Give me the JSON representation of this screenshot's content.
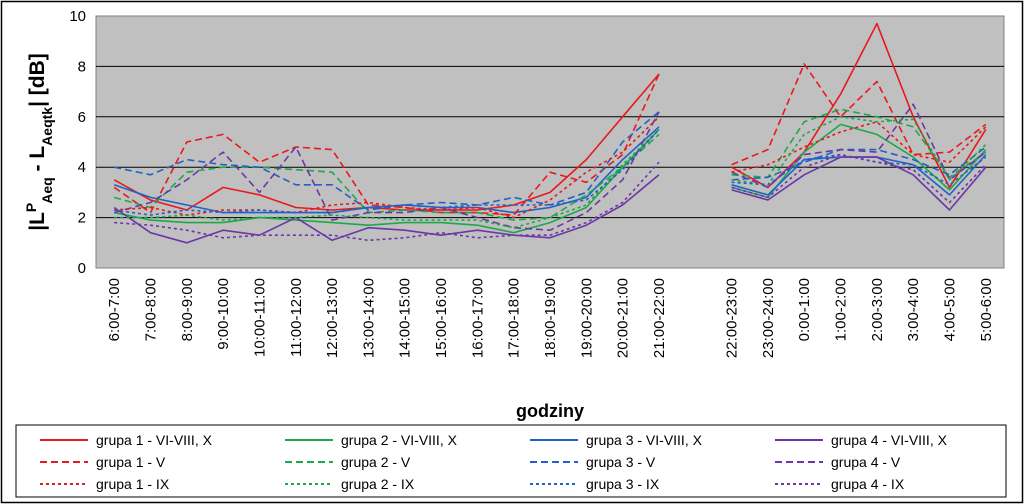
{
  "chart_data": {
    "type": "line",
    "title": "",
    "xlabel": "godziny",
    "ylabel": {
      "parts": [
        {
          "t": "|",
          "s": "n"
        },
        {
          "t": "L",
          "s": "n"
        },
        {
          "t": "P",
          "s": "sup"
        },
        {
          "t": "Aeq",
          "s": "sub"
        },
        {
          "t": " - L",
          "s": "n"
        },
        {
          "t": "Aeqtk",
          "s": "sub"
        },
        {
          "t": "|",
          "s": "n"
        },
        {
          "t": " [dB]",
          "s": "n"
        }
      ]
    },
    "ylim": [
      0,
      10
    ],
    "yticks": [
      "0",
      "2",
      "4",
      "6",
      "8",
      "10"
    ],
    "grid": "horizontal",
    "legend_position": "bottom",
    "categories": [
      "6:00-7:00",
      "7:00-8:00",
      "8:00-9:00",
      "9:00-10:00",
      "10:00-11:00",
      "11:00-12:00",
      "12:00-13:00",
      "13:00-14:00",
      "14:00-15:00",
      "15:00-16:00",
      "16:00-17:00",
      "17:00-18:00",
      "18:00-19:00",
      "19:00-20:00",
      "20:00-21:00",
      "21:00-22:00",
      "",
      "22:00-23:00",
      "23:00-24:00",
      "0:00-1:00",
      "1:00-2:00",
      "2:00-3:00",
      "3:00-4:00",
      "4:00-5:00",
      "5:00-6:00"
    ],
    "colors": {
      "red": "#e8191c",
      "green": "#1ea84a",
      "blue": "#1f63c6",
      "purple": "#6b37a8"
    },
    "series": [
      {
        "name": "grupa 1 - VI-VIII, X",
        "color": "#e8191c",
        "dash": "solid",
        "values": [
          3.5,
          2.7,
          2.3,
          3.2,
          2.9,
          2.4,
          2.3,
          2.4,
          2.3,
          2.3,
          2.3,
          2.5,
          3.0,
          4.3,
          6.0,
          7.7,
          null,
          4.0,
          3.2,
          4.6,
          6.9,
          9.7,
          6.0,
          3.2,
          5.5
        ]
      },
      {
        "name": "grupa 2 - VI-VIII, X",
        "color": "#1ea84a",
        "dash": "solid",
        "values": [
          2.2,
          1.9,
          1.8,
          1.8,
          2.0,
          1.9,
          1.8,
          1.7,
          1.8,
          1.8,
          1.7,
          1.4,
          1.8,
          2.4,
          4.0,
          5.5,
          null,
          3.2,
          2.8,
          4.6,
          5.7,
          5.3,
          4.4,
          3.1,
          4.7
        ]
      },
      {
        "name": "grupa 3 - VI-VIII, X",
        "color": "#1f63c6",
        "dash": "solid",
        "values": [
          3.3,
          2.8,
          2.5,
          2.2,
          2.2,
          2.2,
          2.2,
          2.4,
          2.5,
          2.4,
          2.4,
          2.2,
          2.4,
          2.8,
          4.3,
          5.6,
          null,
          3.3,
          2.9,
          4.3,
          4.4,
          4.4,
          4.1,
          2.9,
          4.5
        ]
      },
      {
        "name": "grupa 4 - VI-VIII, X",
        "color": "#6b37a8",
        "dash": "solid",
        "values": [
          2.4,
          1.4,
          1.0,
          1.5,
          1.3,
          2.0,
          1.1,
          1.6,
          1.5,
          1.3,
          1.5,
          1.3,
          1.2,
          1.7,
          2.5,
          3.7,
          null,
          3.1,
          2.7,
          3.7,
          4.4,
          4.4,
          3.7,
          2.3,
          4.0
        ]
      },
      {
        "name": "grupa 1 - V",
        "color": "#e8191c",
        "dash": "dash",
        "values": [
          3.2,
          2.2,
          5.0,
          5.3,
          4.2,
          4.8,
          4.7,
          2.5,
          2.4,
          2.2,
          2.2,
          2.1,
          3.8,
          3.4,
          4.5,
          7.7,
          null,
          4.1,
          4.7,
          8.1,
          6.0,
          7.4,
          4.5,
          4.6,
          5.7
        ]
      },
      {
        "name": "grupa 2 - V",
        "color": "#1ea84a",
        "dash": "dash",
        "values": [
          2.8,
          2.4,
          3.8,
          4.0,
          4.0,
          3.9,
          3.8,
          2.2,
          2.3,
          2.2,
          2.2,
          1.9,
          2.0,
          2.9,
          4.0,
          5.3,
          null,
          3.7,
          3.6,
          5.8,
          6.3,
          6.0,
          5.6,
          3.6,
          4.6
        ]
      },
      {
        "name": "grupa 3 - V",
        "color": "#1f63c6",
        "dash": "dash",
        "values": [
          4.0,
          3.7,
          4.3,
          4.1,
          4.0,
          3.3,
          3.3,
          2.3,
          2.5,
          2.6,
          2.5,
          2.8,
          2.5,
          3.0,
          5.0,
          6.2,
          null,
          3.5,
          3.6,
          4.2,
          4.7,
          4.7,
          4.3,
          3.7,
          4.8
        ]
      },
      {
        "name": "grupa 4 - V",
        "color": "#6b37a8",
        "dash": "dash",
        "values": [
          2.2,
          2.6,
          3.5,
          4.6,
          3.0,
          4.8,
          1.9,
          2.2,
          2.2,
          2.4,
          2.0,
          1.6,
          1.5,
          2.2,
          3.5,
          6.2,
          null,
          3.8,
          3.2,
          4.5,
          4.7,
          4.6,
          6.5,
          3.5,
          4.6
        ]
      },
      {
        "name": "grupa 1 - IX",
        "color": "#e8191c",
        "dash": "dot",
        "values": [
          2.3,
          2.4,
          2.1,
          2.3,
          2.3,
          2.2,
          2.5,
          2.6,
          2.4,
          2.3,
          2.4,
          2.0,
          2.7,
          3.8,
          4.6,
          6.0,
          null,
          3.8,
          4.1,
          4.8,
          5.4,
          5.8,
          4.5,
          4.2,
          5.6
        ]
      },
      {
        "name": "grupa 2 - IX",
        "color": "#1ea84a",
        "dash": "dot",
        "values": [
          2.0,
          2.0,
          2.1,
          1.9,
          2.0,
          2.0,
          2.1,
          2.0,
          1.9,
          1.9,
          1.9,
          1.6,
          2.0,
          2.5,
          4.1,
          5.5,
          null,
          3.5,
          3.3,
          5.3,
          6.0,
          5.8,
          5.9,
          3.5,
          4.9
        ]
      },
      {
        "name": "grupa 3 - IX",
        "color": "#1f63c6",
        "dash": "dot",
        "values": [
          2.3,
          2.1,
          2.3,
          2.2,
          2.3,
          2.2,
          2.2,
          2.4,
          2.5,
          2.4,
          2.5,
          2.5,
          2.5,
          2.7,
          3.9,
          5.5,
          null,
          3.4,
          3.3,
          4.3,
          4.5,
          4.2,
          4.1,
          3.3,
          4.4
        ]
      },
      {
        "name": "grupa 4 - IX",
        "color": "#6b37a8",
        "dash": "dot",
        "values": [
          1.8,
          1.7,
          1.5,
          1.2,
          1.3,
          1.3,
          1.3,
          1.1,
          1.2,
          1.4,
          1.2,
          1.3,
          1.3,
          1.8,
          2.6,
          4.2,
          null,
          3.2,
          2.8,
          4.0,
          4.5,
          4.2,
          3.9,
          2.6,
          4.1
        ]
      }
    ]
  }
}
